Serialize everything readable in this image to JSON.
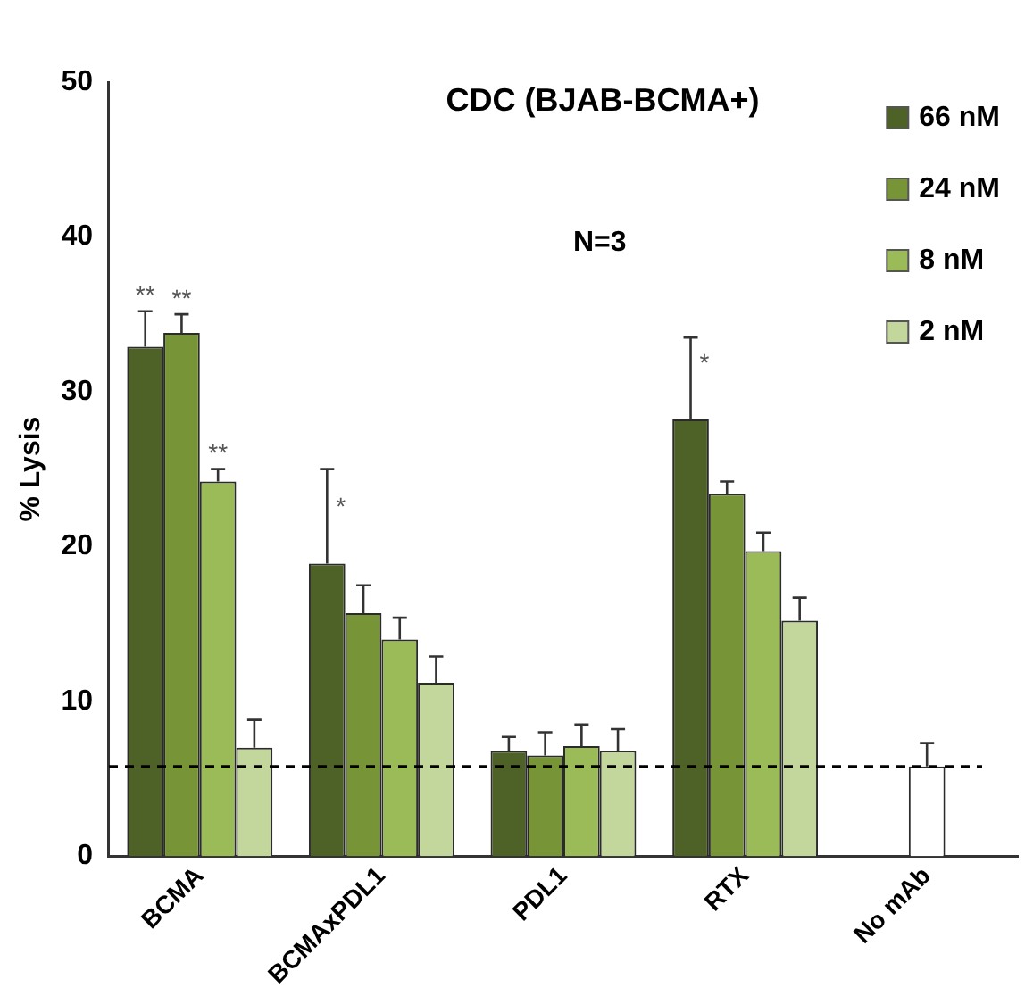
{
  "chart_data": {
    "type": "bar",
    "title": "CDC (BJAB-BCMA+)",
    "ylabel": "% Lysis",
    "categories": [
      "BCMA",
      "BCMAxPDL1",
      "PDL1",
      "RTX",
      "No mAb"
    ],
    "series": [
      {
        "name": "66 nM",
        "color": "#4e6228",
        "values": [
          32.9,
          18.9,
          6.8,
          28.2,
          null
        ],
        "errors": [
          2.3,
          6.1,
          0.9,
          5.3,
          null
        ],
        "value_labels": [
          "**",
          "*",
          null,
          "*",
          null
        ]
      },
      {
        "name": "24 nM",
        "color": "#779536",
        "values": [
          33.8,
          15.7,
          6.5,
          23.4,
          null
        ],
        "errors": [
          1.2,
          1.8,
          1.5,
          0.8,
          null
        ],
        "value_labels": [
          "**",
          null,
          null,
          null,
          null
        ]
      },
      {
        "name": "8 nM",
        "color": "#9bbb59",
        "values": [
          24.2,
          14.0,
          7.1,
          19.7,
          null
        ],
        "errors": [
          0.8,
          1.4,
          1.4,
          1.2,
          null
        ],
        "value_labels": [
          "**",
          null,
          null,
          null,
          null
        ]
      },
      {
        "name": "2 nM",
        "color": "#c3d69b",
        "values": [
          7.0,
          11.2,
          6.8,
          15.2,
          null
        ],
        "errors": [
          1.8,
          1.7,
          1.4,
          1.5,
          null
        ]
      },
      {
        "color": "#ffffff",
        "values": [
          null,
          null,
          null,
          null,
          5.8
        ],
        "errors": [
          null,
          null,
          null,
          null,
          1.5
        ]
      }
    ],
    "ylim": [
      0,
      50
    ],
    "yticks": [
      0,
      10,
      20,
      30,
      40,
      50
    ],
    "grid": false,
    "legend": "top right",
    "ref_lines": [
      {
        "axis": "y",
        "value": 5.8,
        "color": "#000000",
        "line_style": "dashed"
      }
    ],
    "annotations": [
      "N=3"
    ]
  }
}
